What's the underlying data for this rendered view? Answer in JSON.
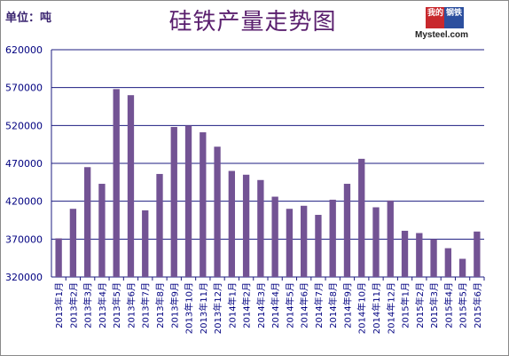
{
  "header": {
    "unit_label": "单位：吨",
    "title": "硅铁产量走势图"
  },
  "logo": {
    "char1": "我的",
    "char2": "钢铁",
    "text": "Mysteel.com"
  },
  "colors": {
    "bar": "#735394",
    "grid": "#1c1c80",
    "axis_text": "#000080",
    "title": "#5a1f6e"
  },
  "chart_data": {
    "type": "bar",
    "title": "硅铁产量走势图",
    "ylabel": "单位：吨",
    "ylim": [
      320000,
      620000
    ],
    "yticks": [
      320000,
      370000,
      420000,
      470000,
      520000,
      570000,
      620000
    ],
    "grid": true,
    "categories": [
      "2013年1月",
      "2013年2月",
      "2013年3月",
      "2013年4月",
      "2013年5月",
      "2013年6月",
      "2013年7月",
      "2013年8月",
      "2013年9月",
      "2013年10月",
      "2013年11月",
      "2013年12月",
      "2014年1月",
      "2014年2月",
      "2014年3月",
      "2014年4月",
      "2014年5月",
      "2014年6月",
      "2014年7月",
      "2014年8月",
      "2014年9月",
      "2014年10月",
      "2014年11月",
      "2014年12月",
      "2015年1月",
      "2015年2月",
      "2015年3月",
      "2015年4月",
      "2015年5月",
      "2015年6月"
    ],
    "values": [
      371000,
      410000,
      465000,
      443000,
      568000,
      560000,
      408000,
      456000,
      518000,
      520000,
      511000,
      492000,
      460000,
      455000,
      448000,
      426000,
      410000,
      414000,
      402000,
      422000,
      443000,
      476000,
      412000,
      421000,
      381000,
      378000,
      370000,
      358000,
      344000,
      380000
    ]
  }
}
